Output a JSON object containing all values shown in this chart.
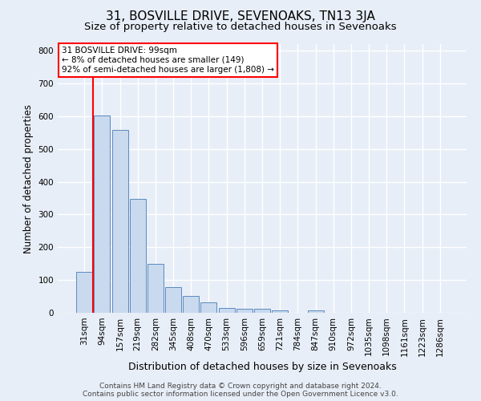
{
  "title": "31, BOSVILLE DRIVE, SEVENOAKS, TN13 3JA",
  "subtitle": "Size of property relative to detached houses in Sevenoaks",
  "xlabel": "Distribution of detached houses by size in Sevenoaks",
  "ylabel": "Number of detached properties",
  "categories": [
    "31sqm",
    "94sqm",
    "157sqm",
    "219sqm",
    "282sqm",
    "345sqm",
    "408sqm",
    "470sqm",
    "533sqm",
    "596sqm",
    "659sqm",
    "721sqm",
    "784sqm",
    "847sqm",
    "910sqm",
    "972sqm",
    "1035sqm",
    "1098sqm",
    "1161sqm",
    "1223sqm",
    "1286sqm"
  ],
  "values": [
    125,
    603,
    557,
    347,
    150,
    78,
    52,
    31,
    15,
    13,
    13,
    7,
    0,
    8,
    0,
    0,
    0,
    0,
    0,
    0,
    0
  ],
  "bar_color": "#c9d9ee",
  "bar_edge_color": "#5b8bbf",
  "annotation_text": "31 BOSVILLE DRIVE: 99sqm\n← 8% of detached houses are smaller (149)\n92% of semi-detached houses are larger (1,808) →",
  "annotation_box_color": "white",
  "annotation_box_edge_color": "red",
  "vline_color": "red",
  "vline_x_index": 1,
  "ylim": [
    0,
    820
  ],
  "yticks": [
    0,
    100,
    200,
    300,
    400,
    500,
    600,
    700,
    800
  ],
  "background_color": "#e8eef7",
  "grid_color": "white",
  "footer_line1": "Contains HM Land Registry data © Crown copyright and database right 2024.",
  "footer_line2": "Contains public sector information licensed under the Open Government Licence v3.0.",
  "title_fontsize": 11,
  "subtitle_fontsize": 9.5,
  "xlabel_fontsize": 9,
  "ylabel_fontsize": 8.5,
  "tick_fontsize": 7.5,
  "footer_fontsize": 6.5
}
